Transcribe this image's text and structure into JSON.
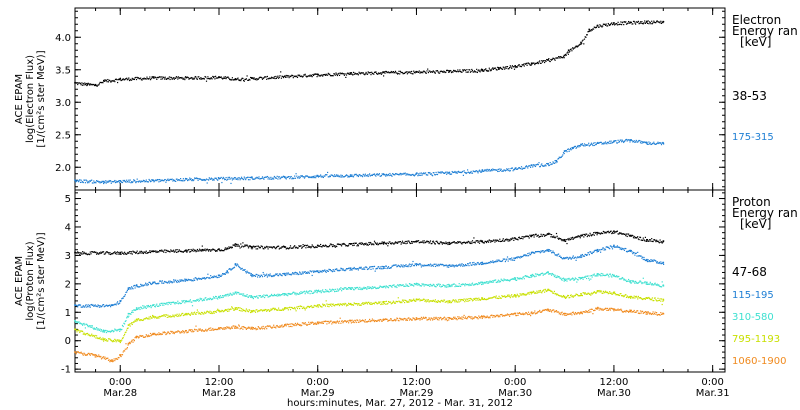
{
  "figure": {
    "xlabel": "hours:minutes, Mar. 27, 2012 - Mar. 31, 2012",
    "time_ticks": [
      {
        "hours": 0,
        "time": "0:00",
        "date": "Mar.28"
      },
      {
        "hours": 12,
        "time": "12:00",
        "date": "Mar.28"
      },
      {
        "hours": 24,
        "time": "0:00",
        "date": "Mar.29"
      },
      {
        "hours": 36,
        "time": "12:00",
        "date": "Mar.29"
      },
      {
        "hours": 48,
        "time": "0:00",
        "date": "Mar.30"
      },
      {
        "hours": 60,
        "time": "12:00",
        "date": "Mar.30"
      },
      {
        "hours": 72,
        "time": "0:00",
        "date": "Mar.31"
      }
    ]
  },
  "chart_data": [
    {
      "type": "scatter",
      "panel": "electron",
      "ylabel": [
        "ACE EPAM",
        "log(Electron Flux)",
        "[1/(cm²s ster MeV)]"
      ],
      "xlim": [
        -5.5,
        73.5
      ],
      "ylim": [
        1.65,
        4.45
      ],
      "yticks": [
        2.0,
        2.5,
        3.0,
        3.5,
        4.0
      ],
      "legend_title": [
        "Electron",
        "Energy ran",
        "[keV]"
      ],
      "series": [
        {
          "name": "38-53",
          "color": "#000000",
          "x": [
            -5.5,
            -4,
            -3,
            -2,
            0,
            4,
            8,
            12,
            14,
            16,
            20,
            24,
            28,
            32,
            36,
            40,
            44,
            46,
            48,
            50,
            52,
            54,
            54.5,
            55.5,
            56,
            57,
            58,
            60,
            62,
            64,
            66
          ],
          "y": [
            3.3,
            3.28,
            3.27,
            3.33,
            3.36,
            3.38,
            3.38,
            3.39,
            3.36,
            3.37,
            3.4,
            3.43,
            3.45,
            3.46,
            3.47,
            3.48,
            3.5,
            3.53,
            3.56,
            3.6,
            3.65,
            3.72,
            3.8,
            3.86,
            3.92,
            4.12,
            4.18,
            4.22,
            4.23,
            4.24,
            4.24
          ]
        },
        {
          "name": "175-315",
          "color": "#1f7fd4",
          "x": [
            -5.5,
            -2,
            0,
            4,
            8,
            12,
            16,
            20,
            24,
            28,
            32,
            36,
            40,
            44,
            48,
            50,
            52,
            53,
            54,
            55,
            56,
            58,
            60,
            62,
            64,
            66
          ],
          "y": [
            1.8,
            1.78,
            1.79,
            1.8,
            1.82,
            1.83,
            1.84,
            1.85,
            1.87,
            1.88,
            1.89,
            1.9,
            1.92,
            1.95,
            1.98,
            2.03,
            2.05,
            2.1,
            2.25,
            2.3,
            2.35,
            2.37,
            2.4,
            2.42,
            2.38,
            2.37
          ]
        }
      ]
    },
    {
      "type": "scatter",
      "panel": "proton",
      "ylabel": [
        "ACE EPAM",
        "log(Proton Flux)",
        "[1/(cm²s ster MeV)]"
      ],
      "xlim": [
        -5.5,
        73.5
      ],
      "ylim": [
        -1.1,
        5.3
      ],
      "yticks": [
        -1,
        0,
        1,
        2,
        3,
        4,
        5
      ],
      "legend_title": [
        "Proton",
        "Energy ran",
        "[keV]"
      ],
      "series": [
        {
          "name": "47-68",
          "color": "#000000",
          "x": [
            -5.5,
            0,
            4,
            8,
            10,
            12,
            13,
            14,
            16,
            20,
            24,
            28,
            32,
            36,
            40,
            44,
            48,
            50,
            52,
            54,
            56,
            58,
            60,
            62,
            64,
            66
          ],
          "y": [
            3.1,
            3.1,
            3.15,
            3.18,
            3.2,
            3.22,
            3.25,
            3.4,
            3.3,
            3.3,
            3.35,
            3.4,
            3.45,
            3.5,
            3.45,
            3.5,
            3.6,
            3.7,
            3.75,
            3.55,
            3.7,
            3.8,
            3.85,
            3.7,
            3.55,
            3.5
          ]
        },
        {
          "name": "115-195",
          "color": "#1f7fd4",
          "x": [
            -5.5,
            -1,
            0,
            1,
            2,
            4,
            8,
            12,
            13,
            14,
            16,
            20,
            24,
            28,
            32,
            36,
            40,
            44,
            48,
            50,
            52,
            54,
            56,
            58,
            60,
            62,
            64,
            66
          ],
          "y": [
            1.25,
            1.25,
            1.4,
            1.85,
            1.95,
            2.05,
            2.15,
            2.3,
            2.45,
            2.7,
            2.3,
            2.35,
            2.45,
            2.55,
            2.6,
            2.7,
            2.65,
            2.75,
            2.9,
            3.1,
            3.2,
            2.9,
            3.0,
            3.2,
            3.35,
            3.15,
            2.85,
            2.75
          ]
        },
        {
          "name": "310-580",
          "color": "#3ee0d0",
          "x": [
            -5.5,
            -2,
            0,
            1,
            2,
            4,
            8,
            12,
            14,
            16,
            20,
            24,
            28,
            32,
            36,
            40,
            44,
            48,
            50,
            52,
            54,
            56,
            58,
            60,
            62,
            64,
            66
          ],
          "y": [
            0.7,
            0.35,
            0.4,
            0.95,
            1.15,
            1.25,
            1.4,
            1.55,
            1.7,
            1.55,
            1.65,
            1.75,
            1.85,
            1.9,
            2.0,
            1.95,
            2.05,
            2.2,
            2.3,
            2.4,
            2.15,
            2.2,
            2.35,
            2.3,
            2.1,
            2.05,
            1.95
          ]
        },
        {
          "name": "795-1193",
          "color": "#c8e000",
          "x": [
            -5.5,
            -2,
            0,
            1,
            2,
            4,
            8,
            12,
            14,
            16,
            20,
            24,
            28,
            32,
            36,
            40,
            44,
            48,
            50,
            52,
            54,
            56,
            58,
            60,
            62,
            64,
            66
          ],
          "y": [
            0.4,
            0.05,
            0.0,
            0.55,
            0.75,
            0.85,
            0.95,
            1.05,
            1.15,
            1.05,
            1.15,
            1.25,
            1.3,
            1.35,
            1.45,
            1.4,
            1.5,
            1.6,
            1.7,
            1.8,
            1.55,
            1.65,
            1.75,
            1.7,
            1.55,
            1.5,
            1.45
          ]
        },
        {
          "name": "1060-1900",
          "color": "#f08a1e",
          "x": [
            -5.5,
            -3,
            -1,
            0,
            1,
            2,
            4,
            8,
            12,
            14,
            16,
            20,
            24,
            28,
            32,
            36,
            40,
            44,
            48,
            50,
            52,
            54,
            56,
            58,
            60,
            62,
            64,
            66
          ],
          "y": [
            -0.4,
            -0.5,
            -0.7,
            -0.5,
            -0.1,
            0.15,
            0.25,
            0.35,
            0.45,
            0.5,
            0.45,
            0.55,
            0.65,
            0.7,
            0.75,
            0.8,
            0.8,
            0.85,
            0.95,
            1.0,
            1.1,
            0.95,
            1.0,
            1.15,
            1.1,
            1.05,
            1.0,
            0.95
          ]
        }
      ]
    }
  ]
}
